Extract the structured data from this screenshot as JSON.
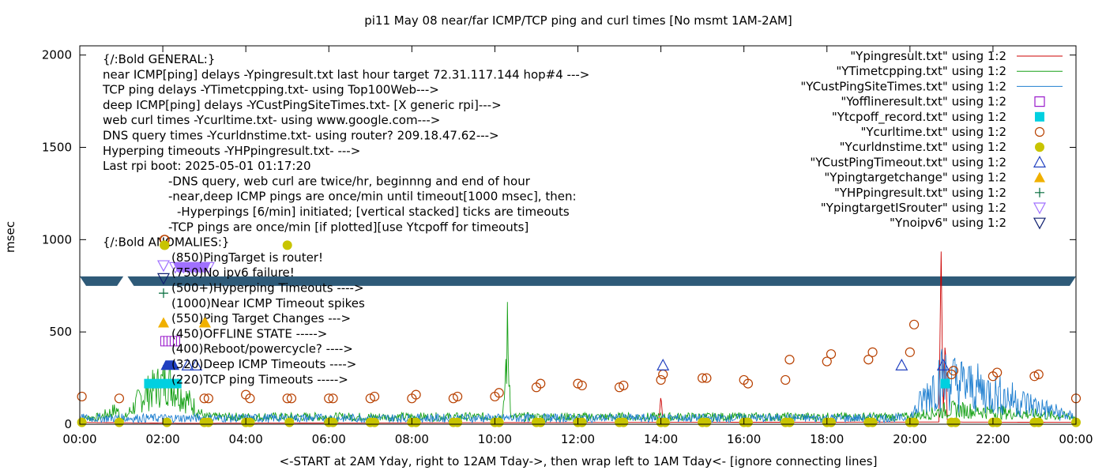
{
  "colors": {
    "ping": "#cc0000",
    "tcp": "#16a016",
    "deep": "#1f7fd0",
    "offline": "#9a1acc",
    "tcpoff": "#00d0e0",
    "curl": "#b84000",
    "dns": "#c8c400",
    "deep_timeout": "#2040c0",
    "target_change": "#f0b000",
    "hyperping": "#006a3a",
    "router": "#a070ff",
    "noipv6": "#102070",
    "band": "#2e5a78"
  },
  "chart_data": {
    "type": "scatter",
    "title": "pi11 May 08  near/far ICMP/TCP ping and curl times [No msmt 1AM-2AM]",
    "xlabel": "<-START at 2AM Yday, right to 12AM Tday->, then wrap left to 1AM Tday<- [ignore connecting lines]",
    "ylabel": "msec",
    "ylim": [
      0,
      2050
    ],
    "xlim": [
      0,
      24
    ],
    "y_ticks": [
      0,
      500,
      1000,
      1500,
      2000
    ],
    "x_ticks": [
      "00:00",
      "02:00",
      "04:00",
      "06:00",
      "08:00",
      "10:00",
      "12:00",
      "14:00",
      "16:00",
      "18:00",
      "20:00",
      "22:00",
      "00:00"
    ],
    "grid": false,
    "legend_position": "top-right",
    "series": [
      {
        "name": "\"Ypingresult.txt\" using 1:2",
        "style": "line",
        "color_key": "ping",
        "x": [
          0,
          2.5,
          13.95,
          14.0,
          14.05,
          20.7,
          20.75,
          20.8,
          20.85,
          20.9,
          24
        ],
        "y": [
          10,
          5,
          10,
          160,
          10,
          12,
          950,
          10,
          480,
          12,
          10
        ]
      },
      {
        "name": "\"YTimetcpping.txt\" using 1:2",
        "style": "line",
        "color_key": "tcp",
        "x": [
          0,
          0.5,
          0.9,
          1.0,
          1.5,
          2.0,
          2.1,
          2.2,
          3.0,
          6.0,
          10.2,
          10.3,
          10.4,
          14.0,
          20.0,
          21.0,
          24
        ],
        "y": [
          30,
          40,
          80,
          10,
          150,
          220,
          240,
          220,
          40,
          40,
          40,
          450,
          40,
          40,
          40,
          80,
          40
        ]
      },
      {
        "name": "\"YCustPingSiteTimes.txt\" using 1:2",
        "style": "line",
        "color_key": "deep",
        "x": [
          0,
          4,
          8,
          12,
          16,
          20,
          20.7,
          24
        ],
        "y": [
          30,
          30,
          30,
          30,
          30,
          30,
          230,
          30
        ]
      },
      {
        "name": "\"Yofflineresult.txt\" using 1:2",
        "style": "point",
        "marker": "square-open",
        "color_key": "offline",
        "x": [],
        "y": []
      },
      {
        "name": "\"Ytcpoff_record.txt\" using 1:2",
        "style": "point",
        "marker": "square-filled",
        "color_key": "tcpoff",
        "x": [
          20.85
        ],
        "y": [
          220
        ]
      },
      {
        "name": "\"Ycurltime.txt\" using 1:2",
        "style": "point",
        "marker": "circle-open",
        "color_key": "curl",
        "x": [
          0.05,
          0.95,
          2.05,
          3.0,
          3.1,
          4.0,
          4.1,
          5.0,
          5.1,
          6.0,
          6.1,
          7.0,
          7.1,
          8.0,
          8.1,
          9.0,
          9.1,
          10.0,
          10.1,
          11.0,
          11.1,
          12.0,
          12.1,
          13.0,
          13.1,
          14.0,
          14.05,
          15.0,
          15.1,
          16.0,
          16.1,
          17.0,
          17.1,
          18.0,
          18.1,
          19.0,
          19.1,
          20.0,
          20.1,
          21.0,
          21.05,
          22.0,
          22.1,
          23.0,
          23.1,
          24.0
        ],
        "y": [
          150,
          140,
          1000,
          140,
          140,
          160,
          140,
          140,
          140,
          140,
          140,
          140,
          150,
          140,
          160,
          140,
          150,
          150,
          170,
          200,
          220,
          220,
          210,
          200,
          210,
          240,
          270,
          250,
          250,
          240,
          220,
          240,
          350,
          340,
          380,
          350,
          390,
          390,
          540,
          270,
          290,
          260,
          280,
          260,
          270,
          140
        ]
      },
      {
        "name": "\"Ycurldnstime.txt\" using 1:2",
        "style": "point",
        "marker": "circle-filled",
        "color_key": "dns",
        "x": [
          0.05,
          0.95,
          2.05,
          2.1,
          3.0,
          3.1,
          4.0,
          4.1,
          5.0,
          5.05,
          6.0,
          6.1,
          7.0,
          7.1,
          8.0,
          8.1,
          9.0,
          9.1,
          10.0,
          10.1,
          11.0,
          11.1,
          12.0,
          12.1,
          13.0,
          13.1,
          14.0,
          14.1,
          15.0,
          15.1,
          16.0,
          16.1,
          17.0,
          17.1,
          18.0,
          18.1,
          19.0,
          19.1,
          20.0,
          20.1,
          21.0,
          21.1,
          22.0,
          22.1,
          23.0,
          23.1,
          24.0
        ],
        "y": [
          10,
          10,
          970,
          10,
          10,
          10,
          10,
          10,
          970,
          10,
          10,
          10,
          10,
          10,
          10,
          10,
          10,
          10,
          10,
          10,
          10,
          10,
          10,
          10,
          10,
          10,
          10,
          10,
          10,
          10,
          10,
          10,
          10,
          10,
          10,
          10,
          10,
          10,
          10,
          10,
          10,
          10,
          10,
          10,
          10,
          10,
          10
        ]
      },
      {
        "name": "\"YCustPingTimeout.txt\" using 1:2",
        "style": "point",
        "marker": "triangle-up-open",
        "color_key": "deep_timeout",
        "x": [
          2.6,
          2.8,
          14.05,
          19.8,
          20.8
        ],
        "y": [
          320,
          320,
          320,
          320,
          320
        ]
      },
      {
        "name": "\"Ypingtargetchange\" using 1:2",
        "style": "point",
        "marker": "triangle-up-filled",
        "color_key": "target_change",
        "x": [
          3.0
        ],
        "y": [
          550
        ]
      },
      {
        "name": "\"YHPpingresult.txt\" using 1:2",
        "style": "point",
        "marker": "plus",
        "color_key": "hyperping",
        "x": [],
        "y": []
      },
      {
        "name": "\"YpingtargetISrouter\" using 1:2",
        "style": "point",
        "marker": "triangle-down-open",
        "color_key": "router",
        "x": [
          2.3,
          2.4,
          2.5,
          2.6,
          2.7,
          2.8,
          2.9,
          3.0,
          3.1
        ],
        "y": [
          850,
          850,
          850,
          850,
          850,
          850,
          850,
          850,
          850
        ]
      },
      {
        "name": "\"Ynoipv6\" using 1:2",
        "style": "point",
        "marker": "triangle-down-open",
        "color_key": "noipv6",
        "x": [],
        "y": []
      }
    ],
    "band": {
      "y": 775,
      "x_ranges": [
        [
          0,
          1.05
        ],
        [
          1.15,
          24
        ]
      ]
    },
    "tcpoff_bar": {
      "x_range": [
        1.55,
        2.45
      ],
      "y": 220
    },
    "offline_marks": {
      "x_range": [
        1.95,
        2.35
      ],
      "y": 450
    },
    "deep_timeout_bar": {
      "x_range": [
        1.95,
        2.4
      ],
      "y": 320
    },
    "annotations": [
      "{/:Bold GENERAL:}",
      "near ICMP[ping] delays -Ypingresult.txt last hour target 72.31.117.144 hop#4 --->",
      "TCP ping delays -YTimetcpping.txt- using Top100Web--->",
      "deep ICMP[ping] delays -YCustPingSiteTimes.txt- [X generic rpi]--->",
      "web curl times -Ycurltime.txt- using www.google.com--->",
      "DNS query times -Ycurldnstime.txt- using router? 209.18.47.62--->",
      "Hyperping timeouts -YHPpingresult.txt- --->",
      "Last rpi boot: 2025-05-01 01:17:20",
      "-DNS query, web curl are twice/hr, beginnng and end of hour",
      "-near,deep ICMP pings are once/min until timeout[1000 msec], then:",
      "-Hyperpings [6/min] initiated; [vertical stacked] ticks are timeouts",
      "-TCP pings are once/min [if plotted][use Ytcpoff for timeouts]",
      "{/:Bold ANOMALIES:}",
      "(850)PingTarget is router!",
      "(750)No ipv6 failure!",
      "(500+)Hyperping Timeouts ---->",
      "(1000)Near ICMP Timeout spikes",
      "(550)Ping Target Changes --->",
      "(450)OFFLINE STATE ----->",
      "(400)Reboot/powercycle? ---->",
      "(320)Deep ICMP Timeouts ---->",
      "(220)TCP ping Timeouts ----->"
    ]
  }
}
